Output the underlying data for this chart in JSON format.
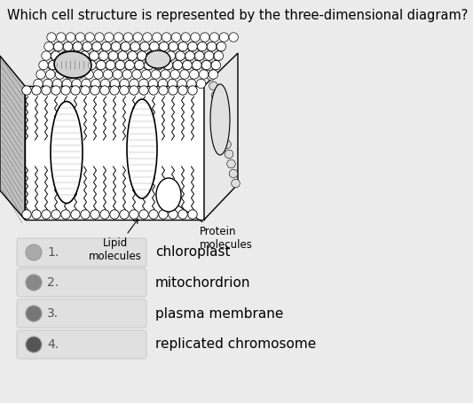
{
  "title": "Which cell structure is represented by the three-dimensional diagram?",
  "title_fontsize": 10.5,
  "options": [
    {
      "num": "1.",
      "text": "chloroplast"
    },
    {
      "num": "2.",
      "text": "mitochordrion"
    },
    {
      "num": "3.",
      "text": "plasma membrane"
    },
    {
      "num": "4.",
      "text": "replicated chromosome"
    }
  ],
  "option_fontsize": 11,
  "bg_color": "#ebebeb",
  "label_lipid": "Lipid\nmolecules",
  "label_protein": "Protein\nmolecules",
  "radio_colors": [
    "#aaaaaa",
    "#888888",
    "#777777",
    "#555555"
  ],
  "box_color": "#e0e0e0",
  "box_edge": "#cccccc"
}
